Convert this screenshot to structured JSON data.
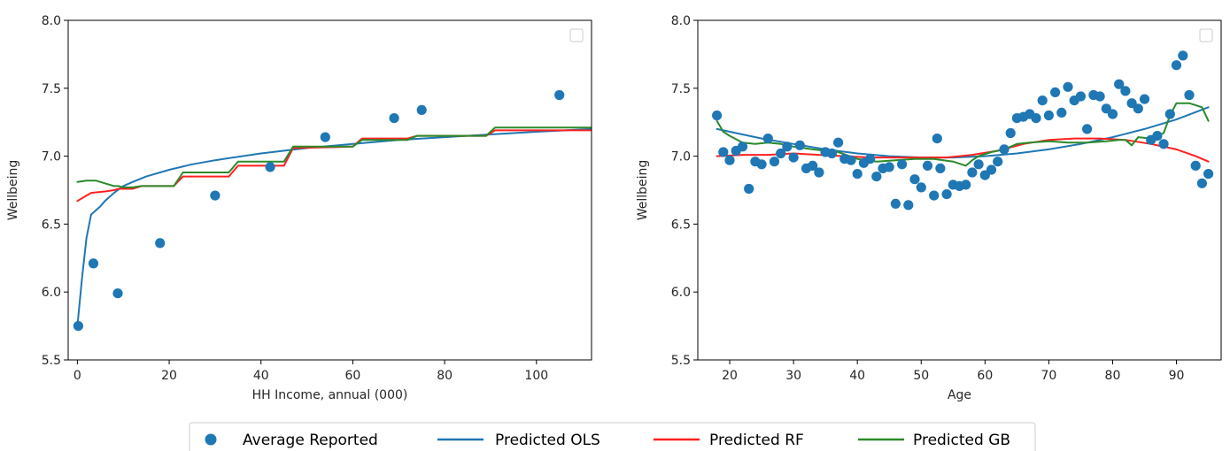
{
  "colors": {
    "points": "#1f77b4",
    "ols": "#1f77b4",
    "rf": "#ff2020",
    "gb": "#2a8a2a",
    "axis": "#000000"
  },
  "legend": {
    "placement": "bottom-center",
    "entries": [
      {
        "key": "points",
        "label": "Average Reported",
        "marker": "circle"
      },
      {
        "key": "ols",
        "label": "Predicted OLS",
        "marker": "line"
      },
      {
        "key": "rf",
        "label": "Predicted RF",
        "marker": "line"
      },
      {
        "key": "gb",
        "label": "Predicted GB",
        "marker": "line"
      }
    ]
  },
  "chart_data": [
    {
      "type": "line",
      "xlabel": "HH Income, annual (000)",
      "ylabel": "Wellbeing",
      "xlim": [
        -2,
        112
      ],
      "ylim": [
        5.5,
        8.0
      ],
      "xticks": [
        0,
        20,
        40,
        60,
        80,
        100
      ],
      "yticks": [
        5.5,
        6.0,
        6.5,
        7.0,
        7.5,
        8.0
      ],
      "ytick_labels": [
        "5.5",
        "6.0",
        "6.5",
        "7.0",
        "7.5",
        "8.0"
      ],
      "grid": false,
      "empty_legend_box": "top-right",
      "points": {
        "name": "Average Reported",
        "x": [
          0.2,
          3.5,
          8.8,
          18,
          30,
          42,
          54,
          69,
          75,
          105
        ],
        "y": [
          5.75,
          6.21,
          5.99,
          6.36,
          6.71,
          6.92,
          7.14,
          7.28,
          7.34,
          7.45
        ]
      },
      "series": [
        {
          "key": "ols",
          "name": "Predicted OLS",
          "x": [
            0,
            1,
            2,
            3,
            4,
            5,
            6,
            8,
            10,
            12,
            15,
            20,
            25,
            30,
            40,
            50,
            60,
            70,
            80,
            90,
            100,
            112
          ],
          "y": [
            5.75,
            6.1,
            6.4,
            6.57,
            6.6,
            6.63,
            6.67,
            6.73,
            6.78,
            6.81,
            6.85,
            6.9,
            6.94,
            6.97,
            7.02,
            7.06,
            7.09,
            7.12,
            7.14,
            7.16,
            7.18,
            7.2
          ]
        },
        {
          "key": "rf",
          "name": "Predicted RF",
          "x": [
            0,
            2,
            3,
            6,
            8,
            9,
            12,
            14,
            21,
            23,
            33,
            35,
            45,
            47,
            60,
            62,
            72,
            74,
            89,
            91,
            112
          ],
          "y": [
            6.67,
            6.71,
            6.73,
            6.74,
            6.75,
            6.76,
            6.76,
            6.78,
            6.78,
            6.85,
            6.85,
            6.93,
            6.93,
            7.06,
            7.07,
            7.13,
            7.13,
            7.15,
            7.15,
            7.19,
            7.19
          ]
        },
        {
          "key": "gb",
          "name": "Predicted GB",
          "x": [
            0,
            2,
            4,
            6,
            8,
            9,
            10,
            12,
            14,
            21,
            23,
            33,
            35,
            45,
            47,
            60,
            62,
            72,
            74,
            89,
            91,
            112
          ],
          "y": [
            6.81,
            6.82,
            6.82,
            6.8,
            6.78,
            6.78,
            6.77,
            6.77,
            6.78,
            6.78,
            6.88,
            6.88,
            6.96,
            6.96,
            7.07,
            7.07,
            7.12,
            7.12,
            7.15,
            7.15,
            7.21,
            7.21
          ]
        }
      ]
    },
    {
      "type": "line",
      "xlabel": "Age",
      "ylabel": "Wellbeing",
      "xlim": [
        15,
        97
      ],
      "ylim": [
        5.5,
        8.0
      ],
      "xticks": [
        20,
        30,
        40,
        50,
        60,
        70,
        80,
        90
      ],
      "yticks": [
        5.5,
        6.0,
        6.5,
        7.0,
        7.5,
        8.0
      ],
      "ytick_labels": [
        "5.5",
        "6.0",
        "6.5",
        "7.0",
        "7.5",
        "8.0"
      ],
      "grid": false,
      "empty_legend_box": "top-right",
      "points": {
        "name": "Average Reported",
        "x": [
          18,
          19,
          20,
          21,
          22,
          23,
          24,
          25,
          26,
          27,
          28,
          29,
          30,
          31,
          32,
          33,
          34,
          35,
          36,
          37,
          38,
          39,
          40,
          41,
          42,
          43,
          44,
          45,
          46,
          47,
          48,
          49,
          50,
          51,
          52,
          52.5,
          53,
          54,
          55,
          56,
          57,
          58,
          59,
          60,
          61,
          62,
          63,
          64,
          65,
          66,
          67,
          68,
          69,
          70,
          71,
          72,
          73,
          74,
          75,
          76,
          77,
          78,
          79,
          80,
          81,
          82,
          83,
          84,
          85,
          86,
          87,
          88,
          89,
          90,
          91,
          92,
          93,
          94,
          95
        ],
        "y": [
          7.3,
          7.03,
          6.97,
          7.04,
          7.07,
          6.76,
          6.96,
          6.94,
          7.13,
          6.96,
          7.02,
          7.07,
          6.99,
          7.08,
          6.91,
          6.93,
          6.88,
          7.03,
          7.02,
          7.1,
          6.98,
          6.97,
          6.87,
          6.95,
          6.98,
          6.85,
          6.91,
          6.92,
          6.65,
          6.94,
          6.64,
          6.83,
          6.77,
          6.93,
          6.71,
          7.13,
          6.91,
          6.72,
          6.79,
          6.78,
          6.79,
          6.88,
          6.94,
          6.86,
          6.9,
          6.96,
          7.05,
          7.17,
          7.28,
          7.29,
          7.31,
          7.28,
          7.41,
          7.3,
          7.47,
          7.32,
          7.51,
          7.41,
          7.44,
          7.2,
          7.45,
          7.44,
          7.35,
          7.31,
          7.53,
          7.48,
          7.39,
          7.35,
          7.42,
          7.12,
          7.15,
          7.09,
          7.31,
          7.67,
          7.74,
          7.45,
          6.93,
          6.8,
          6.87
        ]
      },
      "series": [
        {
          "key": "ols",
          "name": "Predicted OLS",
          "x": [
            18,
            25,
            30,
            35,
            40,
            45,
            50,
            55,
            60,
            65,
            70,
            75,
            80,
            85,
            90,
            95
          ],
          "y": [
            7.2,
            7.13,
            7.09,
            7.05,
            7.02,
            7.0,
            6.99,
            6.99,
            7.0,
            7.02,
            7.05,
            7.09,
            7.14,
            7.2,
            7.27,
            7.36
          ]
        },
        {
          "key": "rf",
          "name": "Predicted RF",
          "x": [
            18,
            22,
            26,
            30,
            34,
            38,
            42,
            46,
            50,
            54,
            58,
            62,
            66,
            70,
            74,
            78,
            82,
            86,
            90,
            93,
            95
          ],
          "y": [
            7.0,
            7.01,
            7.01,
            7.02,
            7.01,
            7.0,
            6.99,
            6.99,
            6.99,
            6.99,
            7.01,
            7.04,
            7.09,
            7.12,
            7.13,
            7.13,
            7.12,
            7.09,
            7.05,
            7.0,
            6.96
          ]
        },
        {
          "key": "gb",
          "name": "Predicted GB",
          "x": [
            18,
            19,
            20,
            22,
            24,
            26,
            28,
            30,
            33,
            35,
            37,
            40,
            43,
            46,
            49,
            52,
            55,
            57,
            58,
            59,
            61,
            63,
            65,
            67,
            70,
            73,
            76,
            79,
            81,
            82,
            83,
            84,
            86,
            88,
            89,
            90,
            92,
            94,
            95
          ],
          "y": [
            7.26,
            7.18,
            7.15,
            7.1,
            7.09,
            7.1,
            7.09,
            7.07,
            7.05,
            7.04,
            7.03,
            6.98,
            6.96,
            6.97,
            6.98,
            6.98,
            6.96,
            6.93,
            6.97,
            7.0,
            7.03,
            7.05,
            7.09,
            7.1,
            7.11,
            7.1,
            7.1,
            7.11,
            7.12,
            7.12,
            7.08,
            7.14,
            7.13,
            7.17,
            7.3,
            7.39,
            7.39,
            7.36,
            7.26
          ]
        }
      ]
    }
  ]
}
